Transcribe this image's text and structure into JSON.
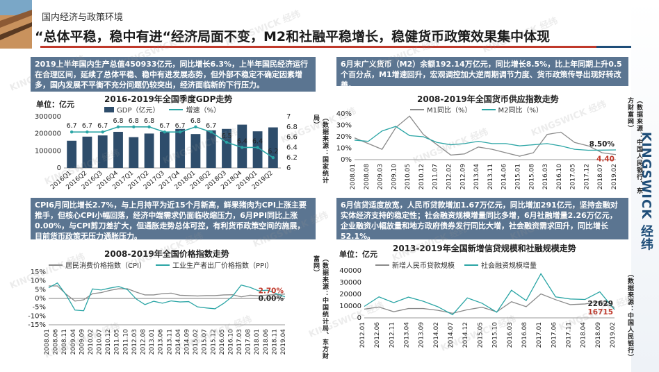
{
  "header": {
    "breadcrumb": "国内经济与政策环境",
    "headline": "“总体平稳，稳中有进“经济局面不变，M2和社融平稳增长，稳健货币政策效果集中体现"
  },
  "brand": {
    "name": "KINGSWICK 经纬"
  },
  "cards": {
    "gdp": "2019上半年国内生产总值450933亿元，同比增长6.3%，上半年国民经济运行在合理区间，延续了总体平稳、稳中有进发展态势，但外部不稳定不确定因素增多，国内发展不平衡不充分问题仍较突出，经济面临新的下行压力。",
    "money": "6月末广义货币（M2）余额192.14万亿元，同比增长8.5%，比上年同期上升0.5个百分点，M1增速回升，宏观调控加大逆周期调节力度、货币政策传导出现好转改善。",
    "price": "CPI6月同比增长2.7%，与上月持平为近15个月新高，鲜果猪肉为CPI上涨主要推手，但核心CPI小幅回落，经济中端需求仍面临收缩压力，6月PPI同比上涨0.00%，与CPI剪刀差扩大，但通胀走势总体可控，有利货币政策空间的施展，目前货币政策无压力通胀压力。",
    "credit": "6月信贷适度放宽，人民币贷款增加1.67万亿元，同比增加291亿元，坚持金融对实体经济支持的稳定性；社会融资规模增量同比多增，6月社融增量2.26万亿元，企业融资小幅放量和地方政府债券发行同比大增，社会融资需求回升，同比增长52.1%。"
  },
  "charts": {
    "gdp": {
      "title": "2016-2019年全国季度GDP走势",
      "unit": "单位：亿元",
      "legend_bar": "GDP（亿元）",
      "legend_line": "增速（%）",
      "source": "（数据来源：国家统计局）"
    },
    "money": {
      "title": "2008-2019年全国货币供应指数走势",
      "legend_a": "M1同比（%）",
      "legend_b": "M2同比（%）",
      "source": "（数据来源：中国人民银行、东方财富网）"
    },
    "price": {
      "title": "2008-2019年全国价格指数走势",
      "legend_a": "居民消费价格指数（CPI）",
      "legend_b": "工业生产者出厂价格指数（PPI）",
      "source": "（数据来源：中国统计局、东方财富网）"
    },
    "credit": {
      "title": "2013-2019年全国新增信贷规模和社融规模走势",
      "unit": "单位：亿元",
      "legend_a": "新增人民币贷款规模",
      "legend_b": "社会融资规模增量",
      "source": "（数据来源：中国人民银行）"
    }
  },
  "chart_data": [
    {
      "type": "bar",
      "title": "2016-2019年全国季度GDP走势",
      "categories": [
        "2016Q1",
        "2016Q2",
        "2016Q3",
        "2016Q4",
        "2017Q1",
        "2017Q2",
        "2017Q3",
        "2017Q4",
        "2018Q1",
        "2018Q2",
        "2018Q3",
        "2018Q4",
        "2019Q1",
        "2019Q2"
      ],
      "series": [
        {
          "name": "GDP（亿元）",
          "axis": "left",
          "values": [
            159000,
            183000,
            190000,
            211000,
            180000,
            201000,
            212000,
            228000,
            198000,
            220000,
            228000,
            253000,
            214000,
            237000
          ]
        },
        {
          "name": "增速（%）",
          "axis": "right",
          "type": "line",
          "values": [
            6.7,
            6.7,
            6.7,
            6.8,
            6.8,
            6.8,
            6.7,
            6.7,
            6.8,
            6.7,
            6.5,
            6.4,
            6.4,
            6.2
          ]
        }
      ],
      "ylim": [
        0,
        300000
      ],
      "yticks": [
        "300000",
        "200000",
        "100000",
        "0"
      ],
      "y2lim": [
        6.0,
        7.0
      ],
      "y2ticks": [
        "7",
        "6.8",
        "6.6",
        "6.4",
        "6.2",
        "6"
      ],
      "bar_color": "#2e4d6b",
      "line_color": "#2aa5a5"
    },
    {
      "type": "line",
      "title": "2008-2019年全国货币供应指数走势",
      "x": [
        "2008.01",
        "2008.08",
        "2009.03",
        "2009.10",
        "2010.05",
        "2010.12",
        "2011.07",
        "2012.02",
        "2012.09",
        "2013.04",
        "2013.11",
        "2014.06",
        "2015.01",
        "2015.08",
        "2016.03",
        "2016.10",
        "2017.05",
        "2017.12",
        "2018.07",
        "2019.02"
      ],
      "xticks": [
        "2008.01",
        "2008.08",
        "2009.03",
        "2009.10",
        "2010.05",
        "2010.12",
        "2011.07",
        "2012.02",
        "2012.09",
        "2013.04",
        "2013.11",
        "2014.06",
        "2015.01",
        "2015.08",
        "2016.03",
        "2016.10",
        "2017.05",
        "2017.12",
        "2018.07",
        "2019.02"
      ],
      "series": [
        {
          "name": "M1同比（%）",
          "values": [
            19,
            14,
            9,
            28,
            38,
            22,
            13,
            4,
            5,
            11,
            9,
            6,
            3,
            6,
            22,
            24,
            15,
            12,
            6,
            4.4
          ]
        },
        {
          "name": "M2同比（%）",
          "values": [
            17,
            16,
            25,
            29,
            21,
            20,
            15,
            13,
            14,
            16,
            14,
            14,
            12,
            13,
            14,
            12,
            9,
            8.2,
            8.3,
            8.5
          ]
        }
      ],
      "ylim": [
        0,
        40
      ],
      "yticks": [
        "40%",
        "30%",
        "20%",
        "10%",
        "0%"
      ],
      "annotations": [
        "8.50%",
        "4.40"
      ],
      "colors": [
        "#8a8a8a",
        "#2aa5a5"
      ]
    },
    {
      "type": "line",
      "title": "2008-2019年全国价格指数走势",
      "x": [
        "2008.01",
        "2008.06",
        "2008.11",
        "2009.04",
        "2009.09",
        "2010.02",
        "2010.07",
        "2010.12",
        "2011.05",
        "2011.10",
        "2012.03",
        "2012.08",
        "2013.01",
        "2013.06",
        "2013.11",
        "2014.04",
        "2014.09",
        "2015.02",
        "2015.07",
        "2015.12",
        "2016.05",
        "2016.10",
        "2017.03",
        "2017.08",
        "2018.01",
        "2018.06",
        "2018.11",
        "2019.04"
      ],
      "xticks": [
        "2008.01",
        "2008.06",
        "2008.11",
        "2009.04",
        "2009.09",
        "2010.02",
        "2010.07",
        "2010.12",
        "2011.05",
        "2011.10",
        "2012.03",
        "2012.08",
        "2013.01",
        "2013.06",
        "2013.11",
        "2014.04",
        "2014.09",
        "2015.02",
        "2015.07",
        "2015.12",
        "2016.05",
        "2016.10",
        "2017.03",
        "2017.08",
        "2018.01",
        "2018.06",
        "2018.11",
        "2019.04"
      ],
      "series": [
        {
          "name": "居民消费价格指数（CPI）",
          "values": [
            7.1,
            7.1,
            2.4,
            -1.5,
            -0.8,
            2.7,
            3.3,
            4.6,
            5.5,
            5.5,
            3.6,
            2.0,
            2.0,
            2.7,
            3.0,
            1.8,
            1.6,
            1.4,
            1.6,
            1.6,
            2.0,
            2.1,
            0.9,
            1.8,
            1.5,
            1.9,
            2.2,
            2.5
          ]
        },
        {
          "name": "工业生产者出厂价格指数（PPI）",
          "values": [
            6.1,
            8.8,
            2.0,
            -6.6,
            -7.0,
            5.4,
            4.8,
            5.9,
            6.8,
            5.0,
            -0.3,
            -3.5,
            -1.6,
            -2.7,
            -1.4,
            -2.0,
            -1.8,
            -4.8,
            -5.4,
            -5.9,
            -2.8,
            1.2,
            7.6,
            6.3,
            4.3,
            4.7,
            2.7,
            0.9
          ]
        }
      ],
      "ylim": [
        -15,
        15
      ],
      "yticks": [
        "15%",
        "10%",
        "5%",
        "0%",
        "-5%",
        "-10%",
        "-15%"
      ],
      "annotations": [
        "2.70%",
        "0.00%"
      ],
      "colors": [
        "#8a8a8a",
        "#2aa5a5"
      ]
    },
    {
      "type": "line",
      "title": "2013-2019年全国新增信贷规模和社融规模走势",
      "x": [
        "2012.01",
        "2012.06",
        "2012.11",
        "2013.04",
        "2013.09",
        "2014.02",
        "2014.07",
        "2014.12",
        "2015.05",
        "2015.10",
        "2016.03",
        "2016.08",
        "2017.01",
        "2017.06",
        "2017.11",
        "2018.04",
        "2018.09",
        "2019.02"
      ],
      "xticks": [
        "2012.01",
        "2012.06",
        "2012.11",
        "2013.04",
        "2013.09",
        "2014.02",
        "2014.07",
        "2014.12",
        "2015.05",
        "2015.10",
        "2016.03",
        "2016.08",
        "2017.01",
        "2017.06",
        "2017.11",
        "2018.04",
        "2018.09",
        "2019.02"
      ],
      "series": [
        {
          "name": "新增人民币贷款规模",
          "values": [
            7400,
            9200,
            5200,
            7900,
            7900,
            6400,
            3900,
            6900,
            9000,
            5100,
            13700,
            9500,
            20300,
            15400,
            11200,
            11800,
            13800,
            8900
          ]
        },
        {
          "name": "社会融资规模增量",
          "values": [
            9700,
            17800,
            12900,
            17600,
            14100,
            9400,
            2700,
            16900,
            12400,
            4800,
            23400,
            14700,
            37400,
            17800,
            16000,
            15600,
            22100,
            7000
          ]
        }
      ],
      "ylim": [
        0,
        40000
      ],
      "yticks": [
        "40000",
        "30000",
        "20000",
        "10000",
        "0"
      ],
      "annotations": [
        "22629",
        "16715"
      ],
      "colors": [
        "#8a8a8a",
        "#2aa5a5"
      ]
    }
  ]
}
